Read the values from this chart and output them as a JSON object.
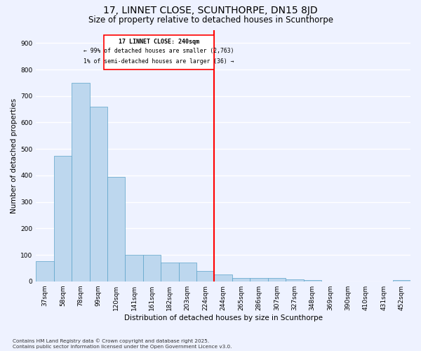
{
  "title1": "17, LINNET CLOSE, SCUNTHORPE, DN15 8JD",
  "title2": "Size of property relative to detached houses in Scunthorpe",
  "xlabel": "Distribution of detached houses by size in Scunthorpe",
  "ylabel": "Number of detached properties",
  "categories": [
    "37sqm",
    "58sqm",
    "78sqm",
    "99sqm",
    "120sqm",
    "141sqm",
    "161sqm",
    "182sqm",
    "203sqm",
    "224sqm",
    "244sqm",
    "265sqm",
    "286sqm",
    "307sqm",
    "327sqm",
    "348sqm",
    "369sqm",
    "390sqm",
    "410sqm",
    "431sqm",
    "452sqm"
  ],
  "values": [
    75,
    475,
    750,
    660,
    395,
    100,
    100,
    70,
    70,
    40,
    25,
    12,
    12,
    12,
    8,
    5,
    0,
    0,
    0,
    0,
    5
  ],
  "bar_color": "#BDD7EE",
  "bar_edge_color": "#5BA3C9",
  "annotation_text1": "17 LINNET CLOSE: 240sqm",
  "annotation_text2": "← 99% of detached houses are smaller (2,763)",
  "annotation_text3": "1% of semi-detached houses are larger (36) →",
  "footnote1": "Contains HM Land Registry data © Crown copyright and database right 2025.",
  "footnote2": "Contains public sector information licensed under the Open Government Licence v3.0.",
  "ylim": [
    0,
    950
  ],
  "yticks": [
    0,
    100,
    200,
    300,
    400,
    500,
    600,
    700,
    800,
    900
  ],
  "bg_color": "#EEF2FF",
  "grid_color": "#FFFFFF",
  "vline_index": 10,
  "title1_fontsize": 10,
  "title2_fontsize": 8.5,
  "axis_label_fontsize": 7.5,
  "tick_fontsize": 6.5,
  "footnote_fontsize": 5.2
}
